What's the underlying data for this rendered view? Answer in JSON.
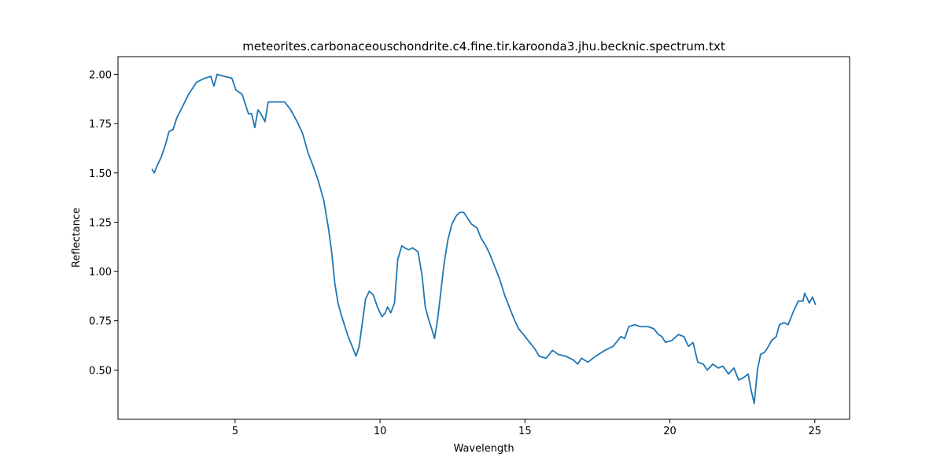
{
  "chart_data": {
    "type": "line",
    "title": "meteorites.carbonaceouschondrite.c4.fine.tir.karoonda3.jhu.becknic.spectrum.txt",
    "x_label": "Wavelength",
    "y_label": "Reflectance",
    "x": [
      2.13,
      2.21,
      2.32,
      2.45,
      2.59,
      2.72,
      2.86,
      2.99,
      3.13,
      3.4,
      3.67,
      3.94,
      4.16,
      4.27,
      4.38,
      4.62,
      4.89,
      5.03,
      5.24,
      5.46,
      5.57,
      5.68,
      5.79,
      5.89,
      6.03,
      6.14,
      6.27,
      6.52,
      6.71,
      6.92,
      7.14,
      7.33,
      7.52,
      7.68,
      7.87,
      8.06,
      8.22,
      8.33,
      8.44,
      8.55,
      8.66,
      8.77,
      8.9,
      9.04,
      9.17,
      9.28,
      9.39,
      9.5,
      9.63,
      9.77,
      9.91,
      10.07,
      10.18,
      10.26,
      10.37,
      10.5,
      10.61,
      10.75,
      10.85,
      10.99,
      11.12,
      11.31,
      11.45,
      11.56,
      11.67,
      11.78,
      11.88,
      11.99,
      12.1,
      12.21,
      12.34,
      12.48,
      12.62,
      12.75,
      12.89,
      13.02,
      13.16,
      13.35,
      13.48,
      13.65,
      13.81,
      13.97,
      14.13,
      14.3,
      14.46,
      14.62,
      14.78,
      14.95,
      15.11,
      15.33,
      15.49,
      15.73,
      15.95,
      16.14,
      16.41,
      16.68,
      16.82,
      16.95,
      17.17,
      17.44,
      17.76,
      18.04,
      18.31,
      18.44,
      18.58,
      18.79,
      18.98,
      19.25,
      19.44,
      19.61,
      19.72,
      19.85,
      20.07,
      20.29,
      20.48,
      20.64,
      20.8,
      20.96,
      21.15,
      21.29,
      21.48,
      21.67,
      21.83,
      22.02,
      22.21,
      22.37,
      22.53,
      22.7,
      22.8,
      22.91,
      23.02,
      23.13,
      23.27,
      23.4,
      23.51,
      23.67,
      23.78,
      23.94,
      24.08,
      24.27,
      24.43,
      24.59,
      24.65,
      24.81,
      24.92,
      25.03
    ],
    "series": [
      {
        "color": "#1f77b4",
        "values": [
          1.52,
          1.5,
          1.54,
          1.58,
          1.64,
          1.71,
          1.72,
          1.78,
          1.82,
          1.9,
          1.96,
          1.98,
          1.99,
          1.94,
          2.0,
          1.99,
          1.98,
          1.92,
          1.9,
          1.8,
          1.8,
          1.73,
          1.82,
          1.8,
          1.76,
          1.86,
          1.86,
          1.86,
          1.86,
          1.82,
          1.76,
          1.7,
          1.6,
          1.54,
          1.46,
          1.36,
          1.22,
          1.1,
          0.94,
          0.84,
          0.78,
          0.73,
          0.67,
          0.62,
          0.57,
          0.62,
          0.74,
          0.86,
          0.9,
          0.88,
          0.82,
          0.77,
          0.79,
          0.82,
          0.79,
          0.84,
          1.06,
          1.13,
          1.12,
          1.11,
          1.12,
          1.1,
          0.98,
          0.82,
          0.76,
          0.71,
          0.66,
          0.76,
          0.9,
          1.04,
          1.16,
          1.24,
          1.28,
          1.3,
          1.3,
          1.27,
          1.24,
          1.22,
          1.17,
          1.13,
          1.08,
          1.02,
          0.96,
          0.88,
          0.82,
          0.76,
          0.71,
          0.68,
          0.65,
          0.61,
          0.57,
          0.56,
          0.6,
          0.58,
          0.57,
          0.55,
          0.53,
          0.56,
          0.54,
          0.57,
          0.6,
          0.62,
          0.67,
          0.66,
          0.72,
          0.73,
          0.72,
          0.72,
          0.71,
          0.68,
          0.67,
          0.64,
          0.65,
          0.68,
          0.67,
          0.62,
          0.64,
          0.54,
          0.53,
          0.5,
          0.53,
          0.51,
          0.52,
          0.48,
          0.51,
          0.45,
          0.46,
          0.48,
          0.4,
          0.33,
          0.5,
          0.58,
          0.59,
          0.62,
          0.65,
          0.67,
          0.73,
          0.74,
          0.73,
          0.8,
          0.85,
          0.85,
          0.89,
          0.84,
          0.87,
          0.83
        ]
      }
    ],
    "xlim": [
      0.96,
      26.2
    ],
    "ylim": [
      0.25,
      2.09
    ],
    "xticks": [
      5,
      10,
      15,
      20,
      25
    ],
    "yticks": [
      {
        "value": 0.5,
        "label": "0.50"
      },
      {
        "value": 0.75,
        "label": "0.75"
      },
      {
        "value": 1.0,
        "label": "1.00"
      },
      {
        "value": 1.25,
        "label": "1.25"
      },
      {
        "value": 1.5,
        "label": "1.50"
      },
      {
        "value": 1.75,
        "label": "1.75"
      },
      {
        "value": 2.0,
        "label": "2.00"
      }
    ],
    "grid": false
  }
}
